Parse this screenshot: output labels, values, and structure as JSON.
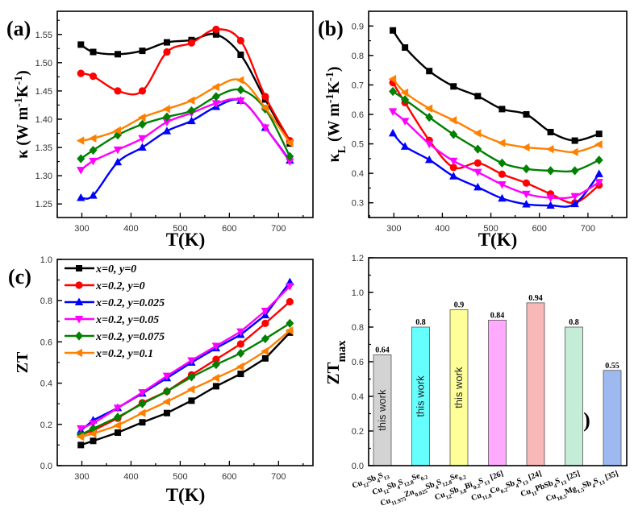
{
  "chart_data": [
    {
      "panel": "(a)",
      "type": "line",
      "xlabel": "T(K)",
      "ylabel": "κ (W m^{-1}K^{-1})",
      "xlim": [
        250,
        770
      ],
      "ylim": [
        1.226,
        1.591
      ],
      "xticks": [
        300,
        400,
        500,
        600,
        700
      ],
      "yticks": [
        1.25,
        1.3,
        1.35,
        1.4,
        1.45,
        1.5,
        1.55
      ],
      "smooth": true,
      "x": [
        298,
        323,
        373,
        423,
        473,
        523,
        573,
        623,
        673,
        723
      ],
      "series": [
        {
          "name": "x=0, y=0",
          "color": "#000000",
          "marker": "square",
          "values": [
            1.532,
            1.519,
            1.515,
            1.521,
            1.536,
            1.54,
            1.55,
            1.514,
            1.435,
            1.357
          ]
        },
        {
          "name": "x=0.2, y=0",
          "color": "#ff0000",
          "marker": "circle",
          "values": [
            1.481,
            1.476,
            1.45,
            1.45,
            1.519,
            1.535,
            1.559,
            1.539,
            1.44,
            1.362
          ]
        },
        {
          "name": "x=0.2, y=0.025",
          "color": "#0000ff",
          "marker": "triangle-up",
          "values": [
            1.261,
            1.265,
            1.324,
            1.35,
            1.379,
            1.397,
            1.422,
            1.433,
            1.385,
            1.327
          ]
        },
        {
          "name": "x=0.2, y=0.05",
          "color": "#ff00ff",
          "marker": "triangle-down",
          "values": [
            1.31,
            1.326,
            1.346,
            1.366,
            1.395,
            1.411,
            1.428,
            1.433,
            1.385,
            1.325
          ]
        },
        {
          "name": "x=0.2, y=0.075",
          "color": "#008000",
          "marker": "diamond",
          "values": [
            1.33,
            1.345,
            1.372,
            1.391,
            1.404,
            1.415,
            1.44,
            1.452,
            1.418,
            1.334
          ]
        },
        {
          "name": "x=0.2, y=0.1",
          "color": "#ff8000",
          "marker": "triangle-left",
          "values": [
            1.362,
            1.366,
            1.38,
            1.403,
            1.418,
            1.433,
            1.457,
            1.469,
            1.42,
            1.358
          ]
        }
      ]
    },
    {
      "panel": "(b)",
      "type": "line",
      "xlabel": "T(K)",
      "ylabel": "κ_{L} (W m^{-1}K^{-1})",
      "xlim": [
        248,
        780
      ],
      "ylim": [
        0.25,
        0.95
      ],
      "xticks": [
        300,
        400,
        500,
        600,
        700
      ],
      "yticks": [
        0.3,
        0.4,
        0.5,
        0.6,
        0.7,
        0.8,
        0.9
      ],
      "smooth": true,
      "x": [
        298,
        323,
        373,
        423,
        473,
        523,
        573,
        623,
        673,
        723
      ],
      "series": [
        {
          "name": "x=0, y=0",
          "color": "#000000",
          "marker": "square",
          "values": [
            0.885,
            0.827,
            0.747,
            0.695,
            0.662,
            0.618,
            0.6,
            0.54,
            0.511,
            0.534
          ]
        },
        {
          "name": "x=0.2, y=0",
          "color": "#ff0000",
          "marker": "circle",
          "values": [
            0.708,
            0.64,
            0.512,
            0.42,
            0.435,
            0.397,
            0.367,
            0.33,
            0.3,
            0.36
          ]
        },
        {
          "name": "x=0.2, y=0.025",
          "color": "#0000ff",
          "marker": "triangle-up",
          "values": [
            0.536,
            0.491,
            0.446,
            0.39,
            0.353,
            0.315,
            0.295,
            0.291,
            0.296,
            0.398
          ]
        },
        {
          "name": "x=0.2, y=0.05",
          "color": "#ff00ff",
          "marker": "triangle-down",
          "values": [
            0.61,
            0.577,
            0.5,
            0.442,
            0.404,
            0.362,
            0.33,
            0.317,
            0.322,
            0.37
          ]
        },
        {
          "name": "x=0.2, y=0.075",
          "color": "#008000",
          "marker": "diamond",
          "values": [
            0.678,
            0.65,
            0.59,
            0.532,
            0.482,
            0.435,
            0.415,
            0.409,
            0.409,
            0.445
          ]
        },
        {
          "name": "x=0.2, y=0.1",
          "color": "#ff8000",
          "marker": "triangle-left",
          "values": [
            0.72,
            0.674,
            0.62,
            0.58,
            0.536,
            0.503,
            0.488,
            0.482,
            0.472,
            0.498
          ]
        }
      ]
    },
    {
      "panel": "(c)",
      "type": "line",
      "xlabel": "T(K)",
      "ylabel": "ZT",
      "xlim": [
        250,
        770
      ],
      "ylim": [
        0,
        1.0
      ],
      "xticks": [
        300,
        400,
        500,
        600,
        700
      ],
      "yticks": [
        0.0,
        0.2,
        0.4,
        0.6,
        0.8,
        1.0
      ],
      "smooth": false,
      "legend": "top-left",
      "x": [
        298,
        323,
        373,
        423,
        473,
        523,
        573,
        623,
        673,
        723
      ],
      "series": [
        {
          "name": "x=0, y=0",
          "color": "#000000",
          "marker": "square",
          "values": [
            0.1,
            0.12,
            0.16,
            0.21,
            0.255,
            0.315,
            0.385,
            0.445,
            0.52,
            0.645
          ]
        },
        {
          "name": "x=0.2, y=0",
          "color": "#ff0000",
          "marker": "circle",
          "values": [
            0.15,
            0.17,
            0.23,
            0.305,
            0.36,
            0.44,
            0.515,
            0.59,
            0.69,
            0.795
          ]
        },
        {
          "name": "x=0.2, y=0.025",
          "color": "#0000ff",
          "marker": "triangle-up",
          "values": [
            0.17,
            0.22,
            0.28,
            0.35,
            0.425,
            0.5,
            0.57,
            0.635,
            0.73,
            0.89
          ]
        },
        {
          "name": "x=0.2, y=0.05",
          "color": "#ff00ff",
          "marker": "triangle-down",
          "values": [
            0.18,
            0.205,
            0.28,
            0.355,
            0.435,
            0.51,
            0.58,
            0.65,
            0.75,
            0.87
          ]
        },
        {
          "name": "x=0.2, y=0.075",
          "color": "#008000",
          "marker": "diamond",
          "values": [
            0.15,
            0.18,
            0.235,
            0.3,
            0.36,
            0.43,
            0.49,
            0.545,
            0.615,
            0.69
          ]
        },
        {
          "name": "x=0.2, y=0.1",
          "color": "#ff8000",
          "marker": "triangle-left",
          "values": [
            0.14,
            0.155,
            0.195,
            0.255,
            0.31,
            0.37,
            0.425,
            0.48,
            0.555,
            0.655
          ]
        }
      ]
    },
    {
      "panel": "(d)",
      "type": "bar",
      "ylabel": "ZT_{max}",
      "ylim": [
        0,
        1.2
      ],
      "yticks": [
        0.0,
        0.2,
        0.4,
        0.6,
        0.8,
        1.0,
        1.2
      ],
      "categories": [
        "Cu_{12}Sb_{4}S_{13}",
        "Cu_{12}Sb_{4}S_{12.8}Se_{0.2}",
        "Cu_{11.975}Zn_{0.025}Sb_{4}S_{12.8}Se_{0.2}",
        "Cu_{12}Sb_{3.8}Bi_{0.2}S_{13} [26]",
        "Cu_{11.8}Co_{0.2}Sb_{4}S_{13} [24]",
        "Cu_{11}PbSb_{4}S_{13} [25]",
        "Cu_{10.5}Mg_{1.5}Sb_{4}S_{13} [35]"
      ],
      "values": [
        0.64,
        0.8,
        0.9,
        0.84,
        0.94,
        0.8,
        0.55
      ],
      "value_labels": [
        "0.64",
        "0.8",
        "0.9",
        "0.84",
        "0.94",
        "0.8",
        "0.55"
      ],
      "bar_notes": [
        "this work",
        "this work",
        "this work",
        "",
        "",
        "",
        ""
      ],
      "colors": [
        "#d3d3d3",
        "#66ffff",
        "#ffff99",
        "#ffaaff",
        "#f8b8b8",
        "#c4ecd6",
        "#9db9f0"
      ]
    }
  ]
}
